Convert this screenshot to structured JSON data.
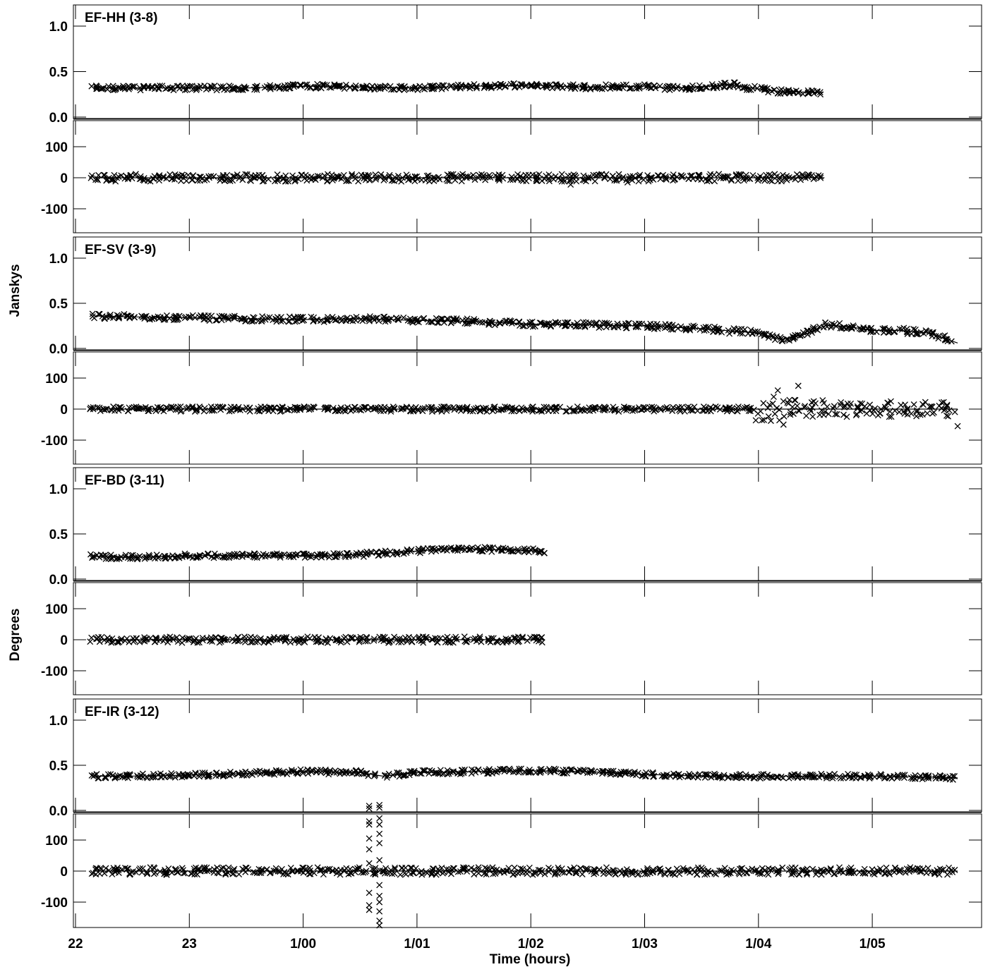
{
  "chart_data": {
    "type": "scatter",
    "title": "",
    "xlabel": "Time (hours)",
    "ylabel_amplitude": "Jansky s",
    "ylabel_phase": "Degrees",
    "x_axis": {
      "range_hours": [
        22.0,
        29.75
      ],
      "ticks": [
        {
          "value": 22.0,
          "label": "22"
        },
        {
          "value": 23.0,
          "label": "23"
        },
        {
          "value": 24.0,
          "label": "1/00"
        },
        {
          "value": 25.0,
          "label": "1/01"
        },
        {
          "value": 26.0,
          "label": "1/02"
        },
        {
          "value": 27.0,
          "label": "1/03"
        },
        {
          "value": 28.0,
          "label": "1/04"
        },
        {
          "value": 29.0,
          "label": "1/05"
        }
      ]
    },
    "amplitude_axis": {
      "range": [
        -0.05,
        1.2
      ],
      "ticks": [
        {
          "value": 0.0,
          "label": "0.0"
        },
        {
          "value": 0.5,
          "label": "0.5"
        },
        {
          "value": 1.0,
          "label": "1.0"
        }
      ]
    },
    "phase_axis": {
      "range": [
        -185,
        185
      ],
      "ticks": [
        {
          "value": -100,
          "label": "-100"
        },
        {
          "value": 0,
          "label": "0"
        },
        {
          "value": 100,
          "label": "100"
        }
      ]
    },
    "marker": "x",
    "baselines": [
      {
        "label": "EF-HH (3-8)",
        "x_range": [
          22.17,
          28.58
        ],
        "amplitude": {
          "x": [
            22.17,
            22.5,
            23.0,
            23.5,
            24.0,
            24.5,
            25.0,
            25.5,
            26.0,
            26.5,
            27.0,
            27.2,
            27.5,
            27.75,
            28.0,
            28.2,
            28.58
          ],
          "y": [
            0.32,
            0.32,
            0.32,
            0.32,
            0.34,
            0.33,
            0.32,
            0.34,
            0.35,
            0.33,
            0.34,
            0.32,
            0.33,
            0.36,
            0.31,
            0.28,
            0.27
          ],
          "spread": 0.05
        },
        "phase": {
          "x": [
            22.17,
            28.58
          ],
          "y": [
            0,
            0
          ],
          "spread": 12
        },
        "phase_outliers": [
          {
            "x": 26.35,
            "y": -22
          },
          {
            "x": 26.85,
            "y": -15
          }
        ]
      },
      {
        "label": "EF-SV (3-9)",
        "x_range": [
          22.17,
          29.75
        ],
        "amplitude": {
          "x": [
            22.17,
            22.5,
            23.0,
            23.5,
            24.0,
            24.5,
            25.0,
            25.5,
            26.0,
            26.5,
            27.0,
            27.5,
            28.0,
            28.2,
            28.4,
            28.6,
            28.8,
            29.0,
            29.25,
            29.5,
            29.75
          ],
          "y": [
            0.36,
            0.35,
            0.34,
            0.33,
            0.32,
            0.33,
            0.31,
            0.3,
            0.27,
            0.26,
            0.25,
            0.22,
            0.17,
            0.1,
            0.15,
            0.26,
            0.24,
            0.2,
            0.2,
            0.17,
            0.06
          ],
          "spread": 0.06
        },
        "phase": {
          "x": [
            22.17,
            27.9,
            28.0,
            28.4,
            28.6,
            29.0,
            29.5,
            29.75
          ],
          "y": [
            0,
            0,
            0,
            0,
            0,
            0,
            0,
            0
          ],
          "spread_by_segment": [
            8,
            8,
            40,
            30,
            25,
            25,
            25
          ]
        },
        "phase_outliers": [
          {
            "x": 28.17,
            "y": 60
          },
          {
            "x": 28.35,
            "y": 75
          },
          {
            "x": 28.22,
            "y": -50
          },
          {
            "x": 29.75,
            "y": -55
          }
        ]
      },
      {
        "label": "EF-BD (3-11)",
        "x_range": [
          22.17,
          26.12
        ],
        "amplitude": {
          "x": [
            22.17,
            22.5,
            23.0,
            23.5,
            24.0,
            24.5,
            25.0,
            25.3,
            25.6,
            26.12
          ],
          "y": [
            0.25,
            0.24,
            0.26,
            0.26,
            0.26,
            0.27,
            0.31,
            0.34,
            0.33,
            0.31
          ],
          "spread": 0.05
        },
        "phase": {
          "x": [
            22.17,
            26.12
          ],
          "y": [
            0,
            0
          ],
          "spread": 10
        },
        "phase_outliers": []
      },
      {
        "label": "EF-IR (3-12)",
        "x_range": [
          22.17,
          29.75
        ],
        "amplitude": {
          "x": [
            22.17,
            22.5,
            23.0,
            23.5,
            24.0,
            24.5,
            24.7,
            25.0,
            25.5,
            26.0,
            26.5,
            27.0,
            27.5,
            28.0,
            28.5,
            29.0,
            29.5,
            29.75
          ],
          "y": [
            0.38,
            0.38,
            0.39,
            0.41,
            0.43,
            0.42,
            0.38,
            0.42,
            0.43,
            0.44,
            0.43,
            0.4,
            0.38,
            0.38,
            0.38,
            0.38,
            0.37,
            0.36
          ],
          "spread": 0.05
        },
        "phase": {
          "x": [
            22.17,
            29.75
          ],
          "y": [
            0,
            0
          ],
          "spread": 12
        },
        "phase_outliers": [
          {
            "x": 24.58,
            "y": 160
          },
          {
            "x": 24.58,
            "y": 150
          },
          {
            "x": 24.58,
            "y": 105
          },
          {
            "x": 24.58,
            "y": 70
          },
          {
            "x": 24.58,
            "y": -70
          },
          {
            "x": 24.58,
            "y": -110
          },
          {
            "x": 24.58,
            "y": -125
          },
          {
            "x": 24.58,
            "y": 25
          },
          {
            "x": 24.67,
            "y": 170
          },
          {
            "x": 24.67,
            "y": 150
          },
          {
            "x": 24.67,
            "y": 120
          },
          {
            "x": 24.67,
            "y": 90
          },
          {
            "x": 24.67,
            "y": 35
          },
          {
            "x": 24.67,
            "y": -45
          },
          {
            "x": 24.67,
            "y": -80
          },
          {
            "x": 24.67,
            "y": -100
          },
          {
            "x": 24.67,
            "y": -130
          },
          {
            "x": 24.67,
            "y": -160
          },
          {
            "x": 24.67,
            "y": -175
          },
          {
            "x": 24.58,
            "y": 1.0
          },
          {
            "x": 24.67,
            "y": 1.02
          }
        ],
        "amplitude_outliers": [
          {
            "x": 24.58,
            "y": 0.05
          },
          {
            "x": 24.58,
            "y": 0.02
          },
          {
            "x": 24.67,
            "y": 0.06
          },
          {
            "x": 24.67,
            "y": 0.03
          }
        ]
      }
    ]
  }
}
